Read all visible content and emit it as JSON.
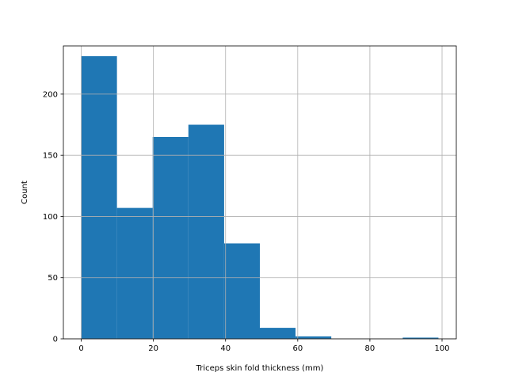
{
  "chart_data": {
    "type": "bar",
    "subtype": "histogram",
    "title": "",
    "xlabel": "Triceps skin fold thickness (mm)",
    "ylabel": "Count",
    "xlim": [
      -4.95,
      103.95
    ],
    "ylim": [
      0,
      239.4
    ],
    "xticks": [
      0,
      20,
      40,
      60,
      80,
      100
    ],
    "yticks": [
      0,
      50,
      100,
      150,
      200
    ],
    "grid": true,
    "bar_color": "#1f77b4",
    "bins": [
      {
        "x0": 0,
        "x1": 9.9,
        "count": 231
      },
      {
        "x0": 9.9,
        "x1": 19.8,
        "count": 107
      },
      {
        "x0": 19.8,
        "x1": 29.7,
        "count": 165
      },
      {
        "x0": 29.7,
        "x1": 39.6,
        "count": 175
      },
      {
        "x0": 39.6,
        "x1": 49.5,
        "count": 78
      },
      {
        "x0": 49.5,
        "x1": 59.4,
        "count": 9
      },
      {
        "x0": 59.4,
        "x1": 69.3,
        "count": 2
      },
      {
        "x0": 69.3,
        "x1": 79.2,
        "count": 0
      },
      {
        "x0": 79.2,
        "x1": 89.1,
        "count": 0
      },
      {
        "x0": 89.1,
        "x1": 99,
        "count": 1
      }
    ]
  }
}
